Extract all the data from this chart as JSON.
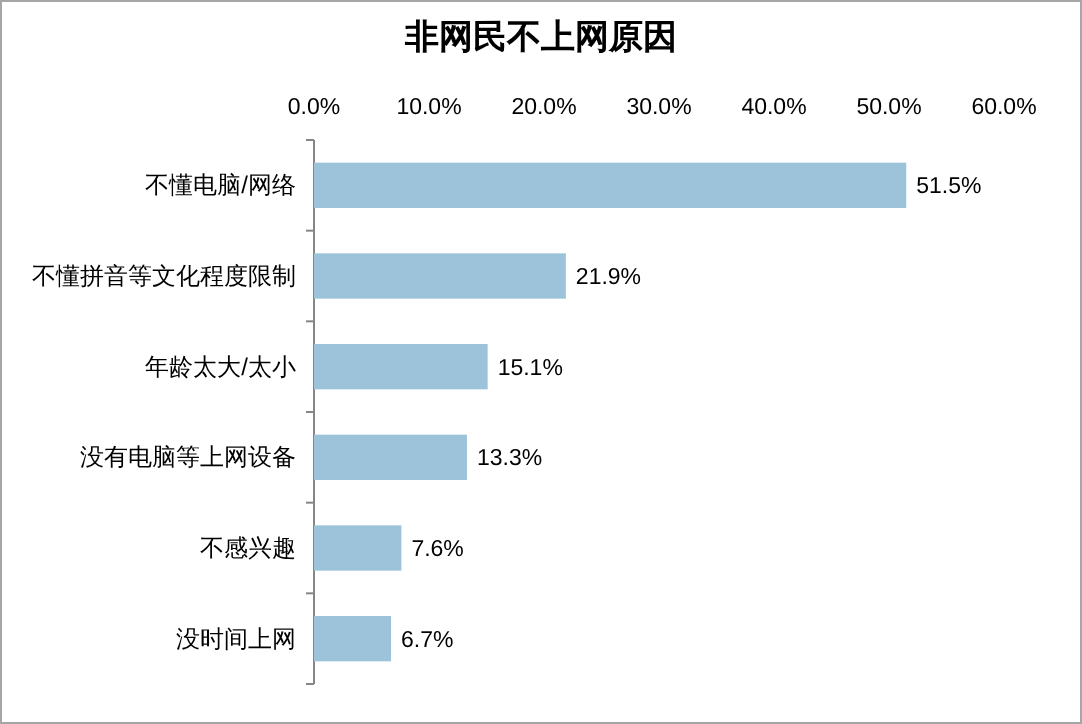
{
  "chart_data": {
    "type": "bar",
    "orientation": "horizontal",
    "title": "非网民不上网原因",
    "categories": [
      "不懂电脑/网络",
      "不懂拼音等文化程度限制",
      "年龄太大/太小",
      "没有电脑等上网设备",
      "不感兴趣",
      "没时间上网"
    ],
    "values": [
      51.5,
      21.9,
      15.1,
      13.3,
      7.6,
      6.7
    ],
    "value_labels": [
      "51.5%",
      "21.9%",
      "15.1%",
      "13.3%",
      "7.6%",
      "6.7%"
    ],
    "color": "#9dc3da",
    "xlim": [
      0,
      60
    ],
    "xticks": [
      {
        "value": 0,
        "label": "0.0%"
      },
      {
        "value": 10,
        "label": "10.0%"
      },
      {
        "value": 20,
        "label": "20.0%"
      },
      {
        "value": 30,
        "label": "30.0%"
      },
      {
        "value": 40,
        "label": "40.0%"
      },
      {
        "value": 50,
        "label": "50.0%"
      },
      {
        "value": 60,
        "label": "60.0%"
      }
    ]
  }
}
